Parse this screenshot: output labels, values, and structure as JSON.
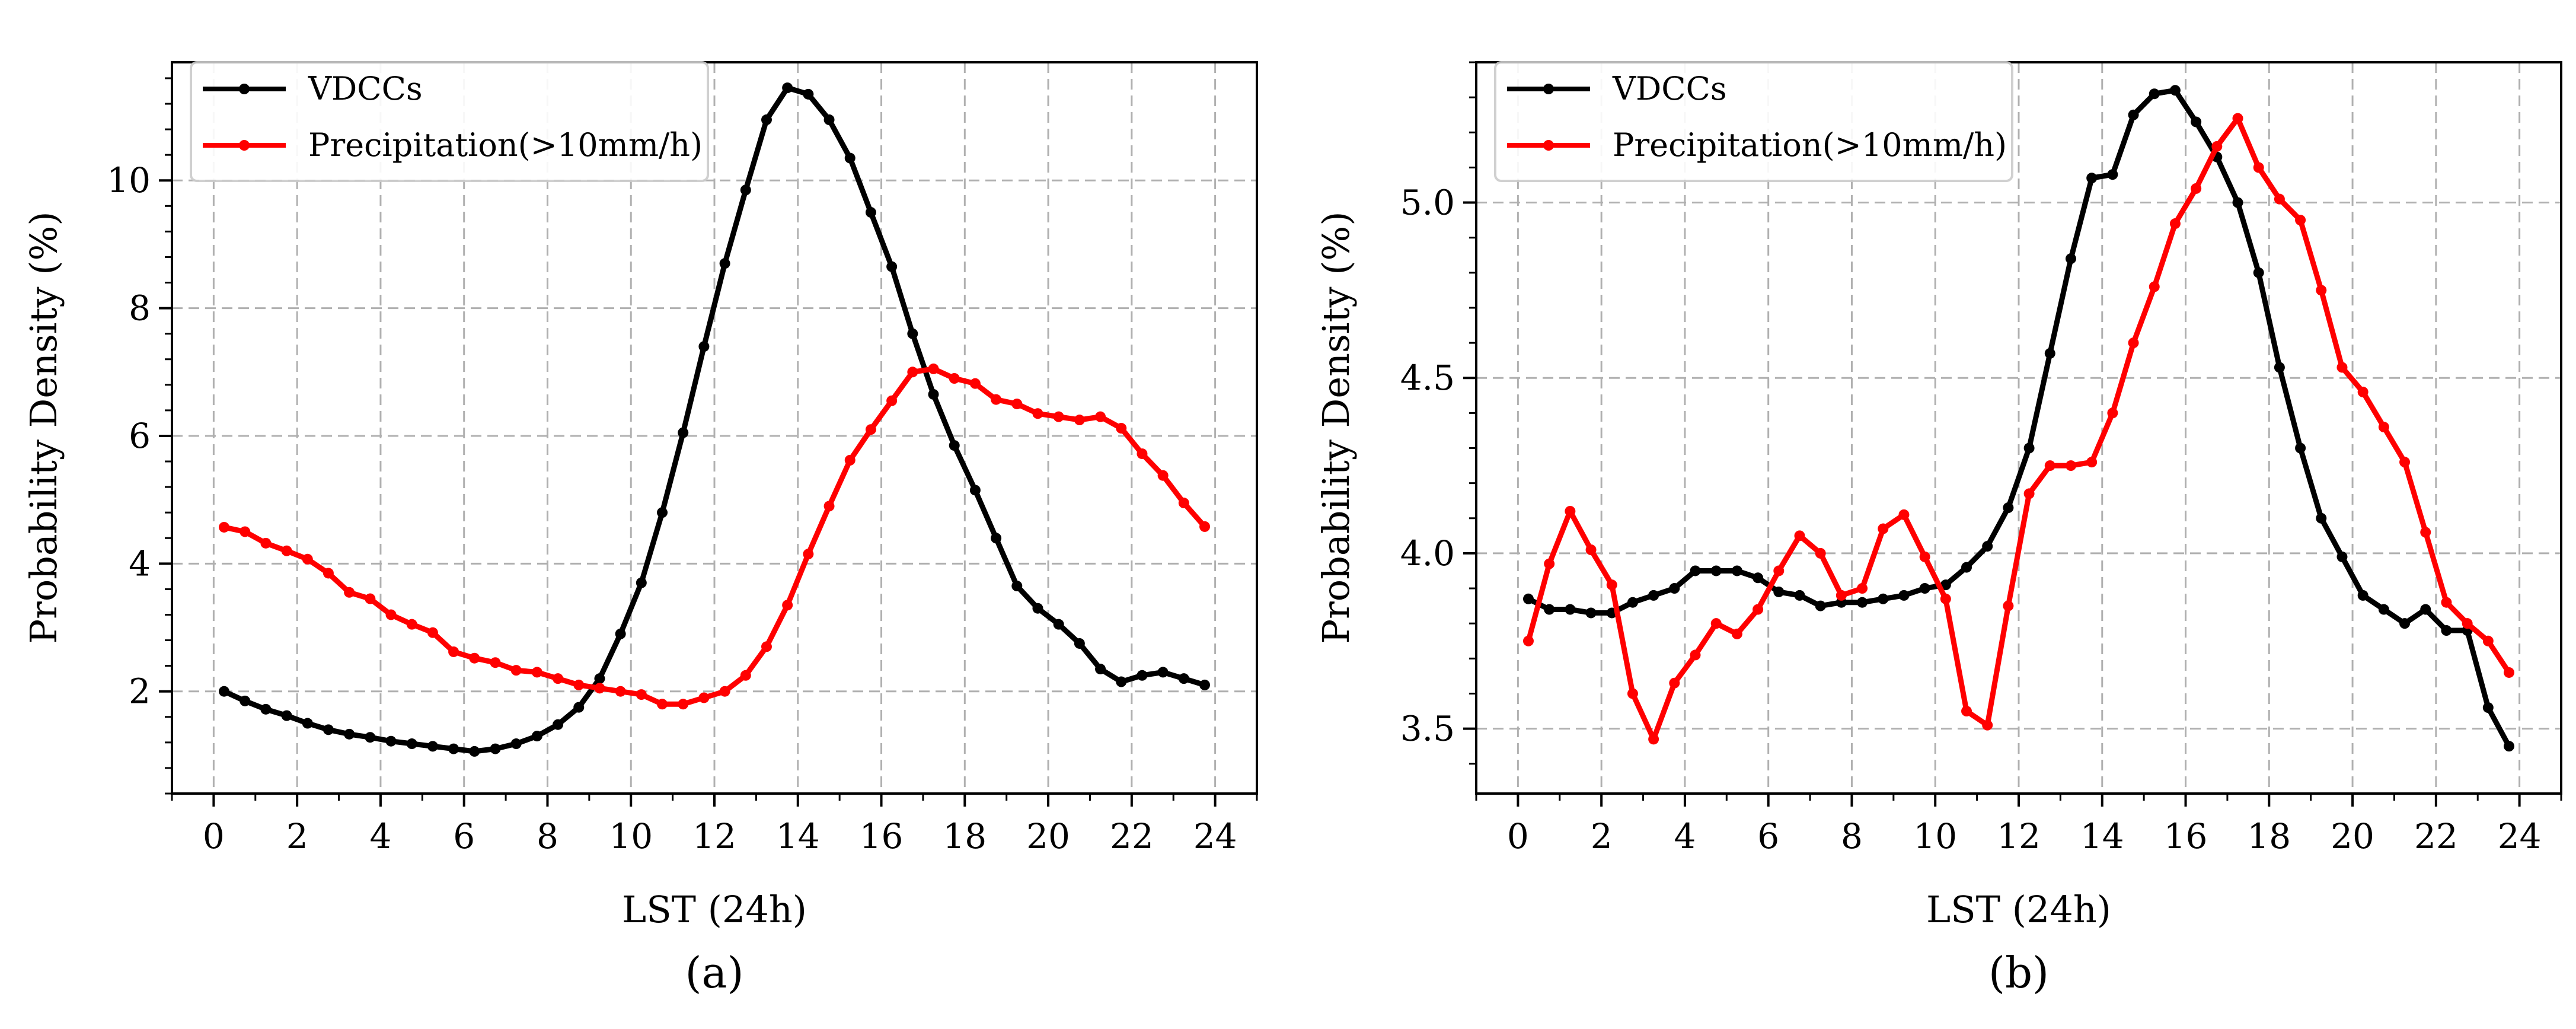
{
  "chart_data": [
    {
      "panel_label": "(a)",
      "type": "line",
      "xlabel": "LST (24h)",
      "ylabel": "Probability Density (%)",
      "xlim": [
        -1,
        25
      ],
      "ylim": [
        0.4,
        11.85
      ],
      "xticks": [
        0,
        2,
        4,
        6,
        8,
        10,
        12,
        14,
        16,
        18,
        20,
        22,
        24
      ],
      "xtick_labels": [
        "0",
        "2",
        "4",
        "6",
        "8",
        "10",
        "12",
        "14",
        "16",
        "18",
        "20",
        "22",
        "24"
      ],
      "yticks": [
        2,
        4,
        6,
        8,
        10
      ],
      "ytick_labels": [
        "2",
        "4",
        "6",
        "8",
        "10"
      ],
      "grid": true,
      "legend_position": "top-left",
      "x": [
        0.25,
        0.75,
        1.25,
        1.75,
        2.25,
        2.75,
        3.25,
        3.75,
        4.25,
        4.75,
        5.25,
        5.75,
        6.25,
        6.75,
        7.25,
        7.75,
        8.25,
        8.75,
        9.25,
        9.75,
        10.25,
        10.75,
        11.25,
        11.75,
        12.25,
        12.75,
        13.25,
        13.75,
        14.25,
        14.75,
        15.25,
        15.75,
        16.25,
        16.75,
        17.25,
        17.75,
        18.25,
        18.75,
        19.25,
        19.75,
        20.25,
        20.75,
        21.25,
        21.75,
        22.25,
        22.75,
        23.25,
        23.75
      ],
      "series": [
        {
          "name": "VDCCs",
          "color": "#000000",
          "values": [
            2.0,
            1.85,
            1.72,
            1.62,
            1.5,
            1.4,
            1.33,
            1.28,
            1.22,
            1.18,
            1.14,
            1.1,
            1.06,
            1.1,
            1.18,
            1.3,
            1.48,
            1.75,
            2.2,
            2.9,
            3.7,
            4.8,
            6.05,
            7.4,
            8.7,
            9.85,
            10.95,
            11.45,
            11.35,
            10.95,
            10.35,
            9.5,
            8.65,
            7.6,
            6.65,
            5.85,
            5.15,
            4.4,
            3.65,
            3.3,
            3.05,
            2.75,
            2.35,
            2.15,
            2.25,
            2.3,
            2.2,
            2.1
          ]
        },
        {
          "name": "Precipitation(>10mm/h)",
          "color": "#ff0000",
          "values": [
            4.57,
            4.5,
            4.32,
            4.2,
            4.07,
            3.85,
            3.55,
            3.45,
            3.2,
            3.05,
            2.92,
            2.62,
            2.52,
            2.45,
            2.33,
            2.3,
            2.2,
            2.1,
            2.05,
            2.0,
            1.95,
            1.8,
            1.8,
            1.9,
            2.0,
            2.25,
            2.7,
            3.35,
            4.15,
            4.9,
            5.62,
            6.1,
            6.55,
            7.0,
            7.05,
            6.9,
            6.82,
            6.57,
            6.5,
            6.35,
            6.3,
            6.25,
            6.3,
            6.12,
            5.72,
            5.38,
            4.95,
            4.58
          ]
        }
      ]
    },
    {
      "panel_label": "(b)",
      "type": "line",
      "xlabel": "LST (24h)",
      "ylabel": "Probability Density (%)",
      "xlim": [
        -1,
        25
      ],
      "ylim": [
        3.315,
        5.4
      ],
      "xticks": [
        0,
        2,
        4,
        6,
        8,
        10,
        12,
        14,
        16,
        18,
        20,
        22,
        24
      ],
      "xtick_labels": [
        "0",
        "2",
        "4",
        "6",
        "8",
        "10",
        "12",
        "14",
        "16",
        "18",
        "20",
        "22",
        "24"
      ],
      "yticks": [
        3.5,
        4.0,
        4.5,
        5.0
      ],
      "ytick_labels": [
        "3.5",
        "4.0",
        "4.5",
        "5.0"
      ],
      "grid": true,
      "legend_position": "top-left",
      "x": [
        0.25,
        0.75,
        1.25,
        1.75,
        2.25,
        2.75,
        3.25,
        3.75,
        4.25,
        4.75,
        5.25,
        5.75,
        6.25,
        6.75,
        7.25,
        7.75,
        8.25,
        8.75,
        9.25,
        9.75,
        10.25,
        10.75,
        11.25,
        11.75,
        12.25,
        12.75,
        13.25,
        13.75,
        14.25,
        14.75,
        15.25,
        15.75,
        16.25,
        16.75,
        17.25,
        17.75,
        18.25,
        18.75,
        19.25,
        19.75,
        20.25,
        20.75,
        21.25,
        21.75,
        22.25,
        22.75,
        23.25,
        23.75
      ],
      "series": [
        {
          "name": "VDCCs",
          "color": "#000000",
          "values": [
            3.87,
            3.84,
            3.84,
            3.83,
            3.83,
            3.86,
            3.88,
            3.9,
            3.95,
            3.95,
            3.95,
            3.93,
            3.89,
            3.88,
            3.85,
            3.86,
            3.86,
            3.87,
            3.88,
            3.9,
            3.91,
            3.96,
            4.02,
            4.13,
            4.3,
            4.57,
            4.84,
            5.07,
            5.08,
            5.25,
            5.31,
            5.32,
            5.23,
            5.13,
            5.0,
            4.8,
            4.53,
            4.3,
            4.1,
            3.99,
            3.88,
            3.84,
            3.8,
            3.84,
            3.78,
            3.78,
            3.56,
            3.45
          ]
        },
        {
          "name": "Precipitation(>10mm/h)",
          "color": "#ff0000",
          "values": [
            3.75,
            3.97,
            4.12,
            4.01,
            3.91,
            3.6,
            3.47,
            3.63,
            3.71,
            3.8,
            3.77,
            3.84,
            3.95,
            4.05,
            4.0,
            3.88,
            3.9,
            4.07,
            4.11,
            3.99,
            3.87,
            3.55,
            3.51,
            3.85,
            4.17,
            4.25,
            4.25,
            4.26,
            4.4,
            4.6,
            4.76,
            4.94,
            5.04,
            5.16,
            5.24,
            5.1,
            5.01,
            4.95,
            4.75,
            4.53,
            4.46,
            4.36,
            4.26,
            4.06,
            3.86,
            3.8,
            3.75,
            3.66
          ]
        }
      ]
    }
  ]
}
